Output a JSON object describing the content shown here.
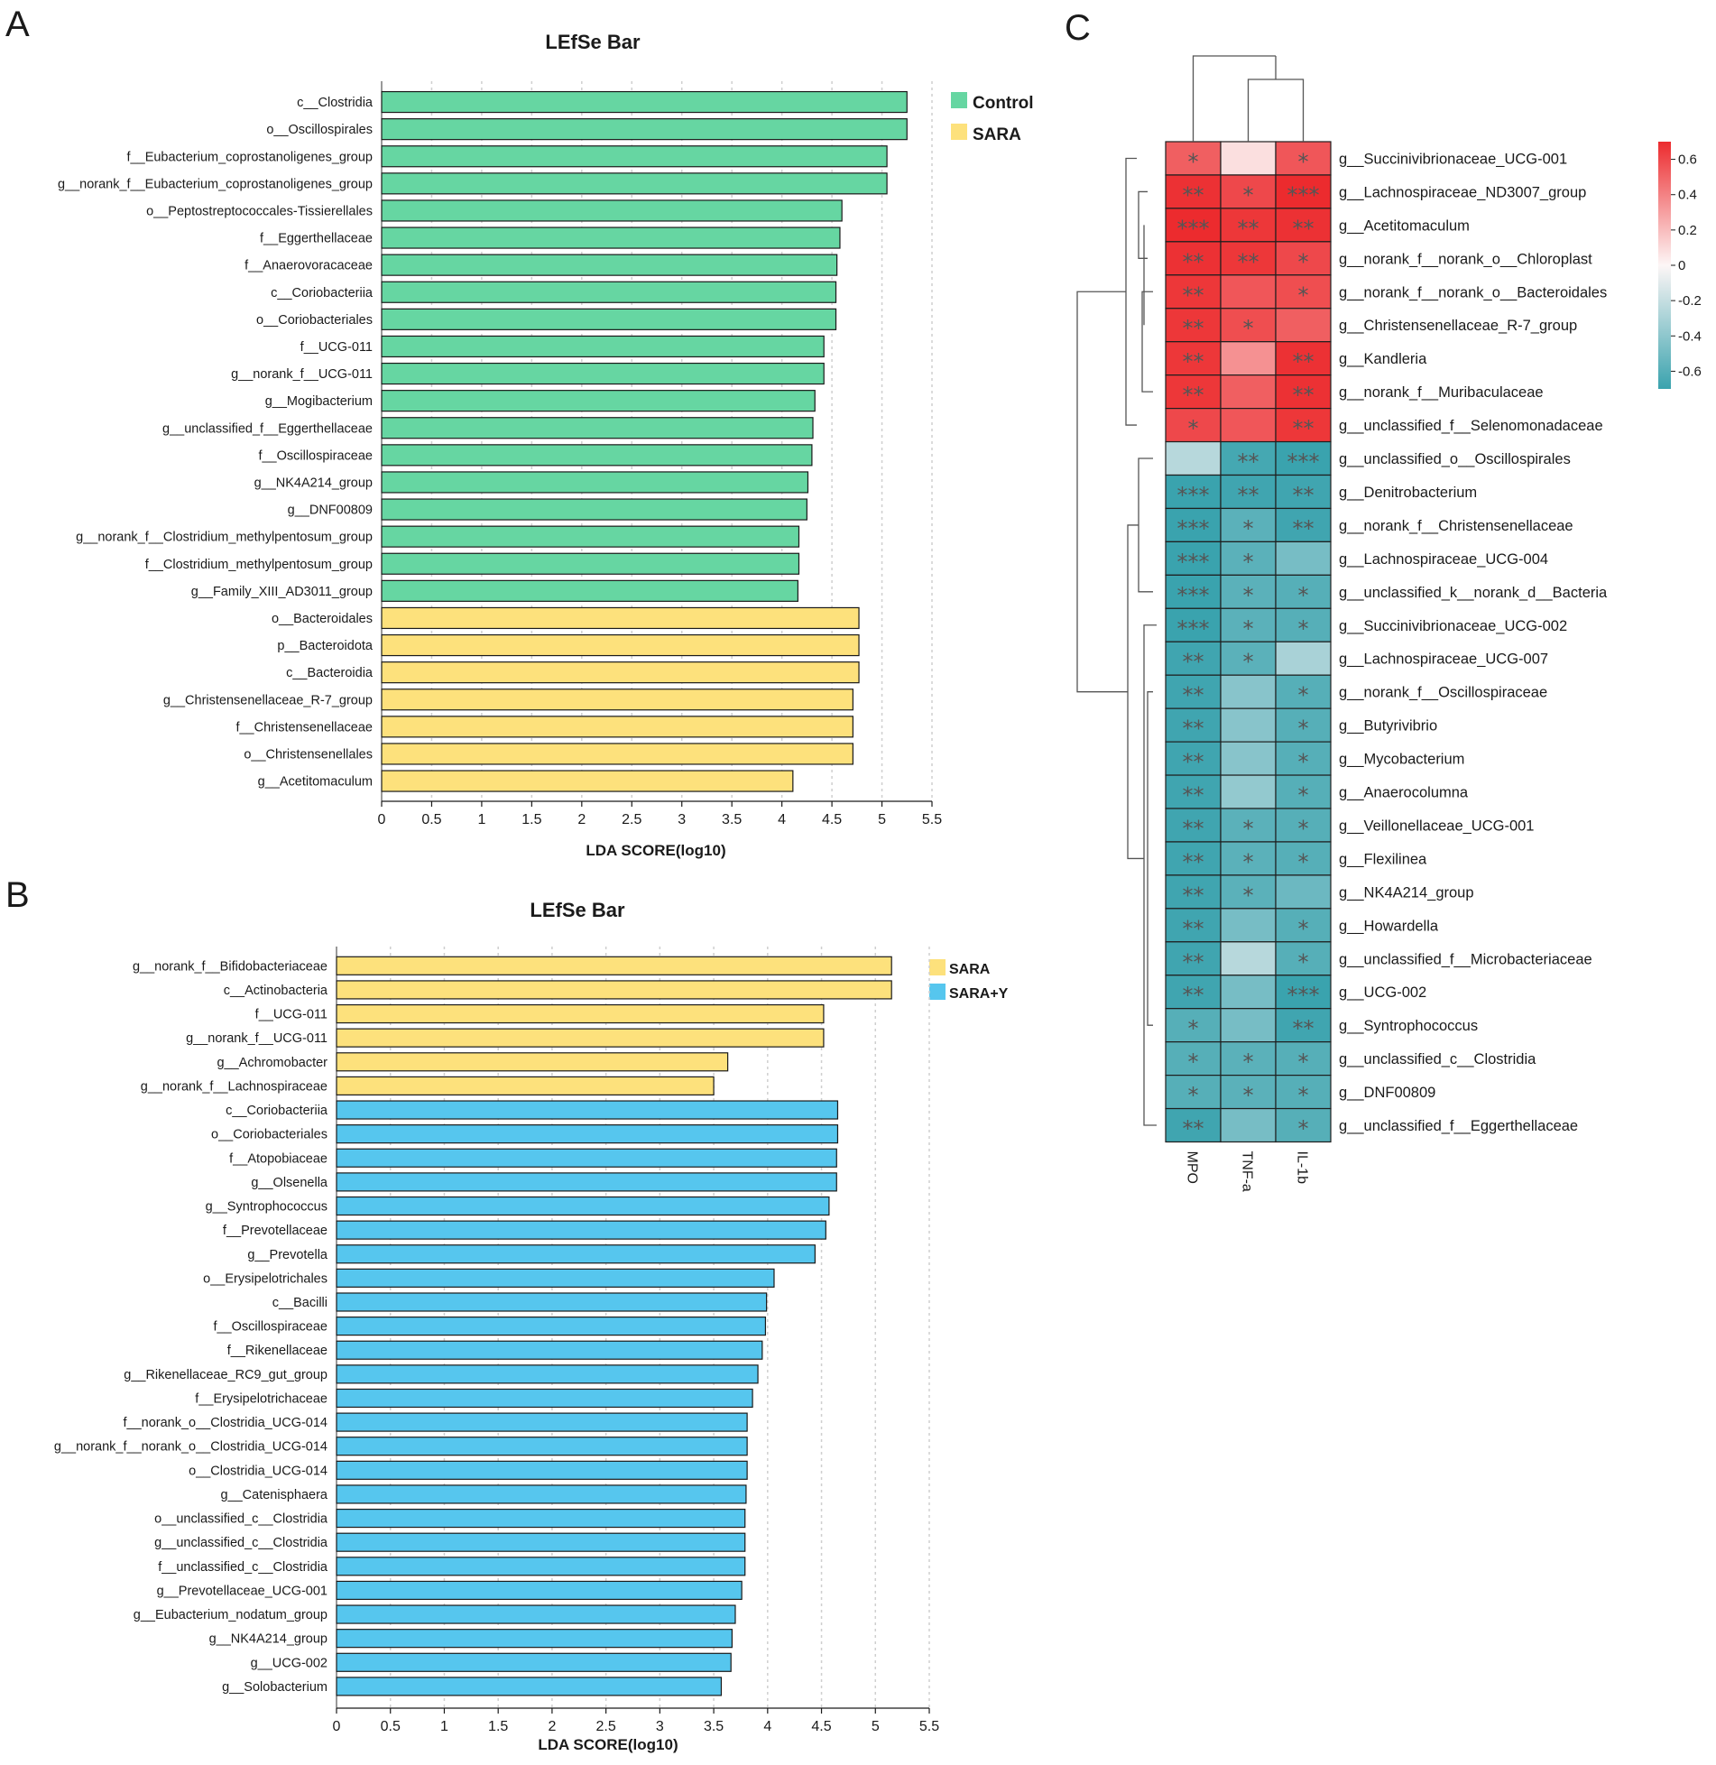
{
  "panels": {
    "a": "A",
    "b": "B",
    "c": "C"
  },
  "colors": {
    "control": "#66d6a2",
    "sara": "#fde17c",
    "saray": "#56c6ee",
    "neg": "#3aa3ae",
    "pos": "#ec2b2e"
  },
  "chart_data": [
    {
      "type": "bar",
      "orientation": "horizontal",
      "title": "LEfSe Bar",
      "xlabel": "LDA SCORE(log10)",
      "xlim": [
        0,
        5.5
      ],
      "xticks": [
        "0",
        "0.5",
        "1",
        "1.5",
        "2",
        "2.5",
        "3",
        "3.5",
        "4",
        "4.5",
        "5",
        "5.5"
      ],
      "legend": [
        {
          "name": "Control",
          "color": "#66d6a2"
        },
        {
          "name": "SARA",
          "color": "#fde17c"
        }
      ],
      "bars": [
        {
          "label": "c__Clostridia",
          "value": 5.25,
          "group": "Control"
        },
        {
          "label": "o__Oscillospirales",
          "value": 5.25,
          "group": "Control"
        },
        {
          "label": "f__Eubacterium_coprostanoligenes_group",
          "value": 5.05,
          "group": "Control"
        },
        {
          "label": "g__norank_f__Eubacterium_coprostanoligenes_group",
          "value": 5.05,
          "group": "Control"
        },
        {
          "label": "o__Peptostreptococcales-Tissierellales",
          "value": 4.6,
          "group": "Control"
        },
        {
          "label": "f__Eggerthellaceae",
          "value": 4.58,
          "group": "Control"
        },
        {
          "label": "f__Anaerovoracaceae",
          "value": 4.55,
          "group": "Control"
        },
        {
          "label": "c__Coriobacteriia",
          "value": 4.54,
          "group": "Control"
        },
        {
          "label": "o__Coriobacteriales",
          "value": 4.54,
          "group": "Control"
        },
        {
          "label": "f__UCG-011",
          "value": 4.42,
          "group": "Control"
        },
        {
          "label": "g__norank_f__UCG-011",
          "value": 4.42,
          "group": "Control"
        },
        {
          "label": "g__Mogibacterium",
          "value": 4.33,
          "group": "Control"
        },
        {
          "label": "g__unclassified_f__Eggerthellaceae",
          "value": 4.31,
          "group": "Control"
        },
        {
          "label": "f__Oscillospiraceae",
          "value": 4.3,
          "group": "Control"
        },
        {
          "label": "g__NK4A214_group",
          "value": 4.26,
          "group": "Control"
        },
        {
          "label": "g__DNF00809",
          "value": 4.25,
          "group": "Control"
        },
        {
          "label": "g__norank_f__Clostridium_methylpentosum_group",
          "value": 4.17,
          "group": "Control"
        },
        {
          "label": "f__Clostridium_methylpentosum_group",
          "value": 4.17,
          "group": "Control"
        },
        {
          "label": "g__Family_XIII_AD3011_group",
          "value": 4.16,
          "group": "Control"
        },
        {
          "label": "o__Bacteroidales",
          "value": 4.77,
          "group": "SARA"
        },
        {
          "label": "p__Bacteroidota",
          "value": 4.77,
          "group": "SARA"
        },
        {
          "label": "c__Bacteroidia",
          "value": 4.77,
          "group": "SARA"
        },
        {
          "label": "g__Christensenellaceae_R-7_group",
          "value": 4.71,
          "group": "SARA"
        },
        {
          "label": "f__Christensenellaceae",
          "value": 4.71,
          "group": "SARA"
        },
        {
          "label": "o__Christensenellales",
          "value": 4.71,
          "group": "SARA"
        },
        {
          "label": "g__Acetitomaculum",
          "value": 4.11,
          "group": "SARA"
        }
      ]
    },
    {
      "type": "bar",
      "orientation": "horizontal",
      "title": "LEfSe Bar",
      "xlabel": "LDA SCORE(log10)",
      "xlim": [
        0,
        5.5
      ],
      "xticks": [
        "0",
        "0.5",
        "1",
        "1.5",
        "2",
        "2.5",
        "3",
        "3.5",
        "4",
        "4.5",
        "5",
        "5.5"
      ],
      "legend": [
        {
          "name": "SARA",
          "color": "#fde17c"
        },
        {
          "name": "SARA+Y",
          "color": "#56c6ee"
        }
      ],
      "bars": [
        {
          "label": "g__norank_f__Bifidobacteriaceae",
          "value": 5.15,
          "group": "SARA"
        },
        {
          "label": "c__Actinobacteria",
          "value": 5.15,
          "group": "SARA"
        },
        {
          "label": "f__UCG-011",
          "value": 4.52,
          "group": "SARA"
        },
        {
          "label": "g__norank_f__UCG-011",
          "value": 4.52,
          "group": "SARA"
        },
        {
          "label": "g__Achromobacter",
          "value": 3.63,
          "group": "SARA"
        },
        {
          "label": "g__norank_f__Lachnospiraceae",
          "value": 3.5,
          "group": "SARA"
        },
        {
          "label": "c__Coriobacteriia",
          "value": 4.65,
          "group": "SARA+Y"
        },
        {
          "label": "o__Coriobacteriales",
          "value": 4.65,
          "group": "SARA+Y"
        },
        {
          "label": "f__Atopobiaceae",
          "value": 4.64,
          "group": "SARA+Y"
        },
        {
          "label": "g__Olsenella",
          "value": 4.64,
          "group": "SARA+Y"
        },
        {
          "label": "g__Syntrophococcus",
          "value": 4.57,
          "group": "SARA+Y"
        },
        {
          "label": "f__Prevotellaceae",
          "value": 4.54,
          "group": "SARA+Y"
        },
        {
          "label": "g__Prevotella",
          "value": 4.44,
          "group": "SARA+Y"
        },
        {
          "label": "o__Erysipelotrichales",
          "value": 4.06,
          "group": "SARA+Y"
        },
        {
          "label": "c__Bacilli",
          "value": 3.99,
          "group": "SARA+Y"
        },
        {
          "label": "f__Oscillospiraceae",
          "value": 3.98,
          "group": "SARA+Y"
        },
        {
          "label": "f__Rikenellaceae",
          "value": 3.95,
          "group": "SARA+Y"
        },
        {
          "label": "g__Rikenellaceae_RC9_gut_group",
          "value": 3.91,
          "group": "SARA+Y"
        },
        {
          "label": "f__Erysipelotrichaceae",
          "value": 3.86,
          "group": "SARA+Y"
        },
        {
          "label": "f__norank_o__Clostridia_UCG-014",
          "value": 3.81,
          "group": "SARA+Y"
        },
        {
          "label": "g__norank_f__norank_o__Clostridia_UCG-014",
          "value": 3.81,
          "group": "SARA+Y"
        },
        {
          "label": "o__Clostridia_UCG-014",
          "value": 3.81,
          "group": "SARA+Y"
        },
        {
          "label": "g__Catenisphaera",
          "value": 3.8,
          "group": "SARA+Y"
        },
        {
          "label": "o__unclassified_c__Clostridia",
          "value": 3.79,
          "group": "SARA+Y"
        },
        {
          "label": "g__unclassified_c__Clostridia",
          "value": 3.79,
          "group": "SARA+Y"
        },
        {
          "label": "f__unclassified_c__Clostridia",
          "value": 3.79,
          "group": "SARA+Y"
        },
        {
          "label": "g__Prevotellaceae_UCG-001",
          "value": 3.76,
          "group": "SARA+Y"
        },
        {
          "label": "g__Eubacterium_nodatum_group",
          "value": 3.7,
          "group": "SARA+Y"
        },
        {
          "label": "g__NK4A214_group",
          "value": 3.67,
          "group": "SARA+Y"
        },
        {
          "label": "g__UCG-002",
          "value": 3.66,
          "group": "SARA+Y"
        },
        {
          "label": "g__Solobacterium",
          "value": 3.57,
          "group": "SARA+Y"
        }
      ]
    },
    {
      "type": "heatmap",
      "columns": [
        "MPO",
        "TNF-a",
        "IL-1b"
      ],
      "colorbar_ticks": [
        "0.6",
        "0.4",
        "0.2",
        "0",
        "-0.2",
        "-0.4",
        "-0.6"
      ],
      "vrange": [
        -0.7,
        0.7
      ],
      "rows": [
        {
          "label": "g__Succinivibrionaceae_UCG-001",
          "values": [
            0.52,
            0.08,
            0.55
          ],
          "stars": [
            "*",
            "",
            "*"
          ]
        },
        {
          "label": "g__Lachnospiraceae_ND3007_group",
          "values": [
            0.68,
            0.6,
            0.72
          ],
          "stars": [
            "**",
            "*",
            "***"
          ]
        },
        {
          "label": "g__Acetitomaculum",
          "values": [
            0.72,
            0.66,
            0.68
          ],
          "stars": [
            "***",
            "**",
            "**"
          ]
        },
        {
          "label": "g__norank_f__norank_o__Chloroplast",
          "values": [
            0.68,
            0.66,
            0.6
          ],
          "stars": [
            "**",
            "**",
            "*"
          ]
        },
        {
          "label": "g__norank_f__norank_o__Bacteroidales",
          "values": [
            0.66,
            0.55,
            0.58
          ],
          "stars": [
            "**",
            "",
            "*"
          ]
        },
        {
          "label": "g__Christensenellaceae_R-7_group",
          "values": [
            0.66,
            0.58,
            0.52
          ],
          "stars": [
            "**",
            "*",
            ""
          ]
        },
        {
          "label": "g__Kandleria",
          "values": [
            0.66,
            0.35,
            0.68
          ],
          "stars": [
            "**",
            "",
            "**"
          ]
        },
        {
          "label": "g__norank_f__Muribaculaceae",
          "values": [
            0.66,
            0.52,
            0.68
          ],
          "stars": [
            "**",
            "",
            "**"
          ]
        },
        {
          "label": "g__unclassified_f__Selenomonadaceae",
          "values": [
            0.6,
            0.55,
            0.66
          ],
          "stars": [
            "*",
            "",
            "**"
          ]
        },
        {
          "label": "g__unclassified_o__Oscillospirales",
          "values": [
            -0.25,
            -0.66,
            -0.72
          ],
          "stars": [
            "",
            "**",
            "***"
          ]
        },
        {
          "label": "g__Denitrobacterium",
          "values": [
            -0.75,
            -0.68,
            -0.68
          ],
          "stars": [
            "***",
            "**",
            "**"
          ]
        },
        {
          "label": "g__norank_f__Christensenellaceae",
          "values": [
            -0.75,
            -0.58,
            -0.68
          ],
          "stars": [
            "***",
            "*",
            "**"
          ]
        },
        {
          "label": "g__Lachnospiraceae_UCG-004",
          "values": [
            -0.75,
            -0.58,
            -0.48
          ],
          "stars": [
            "***",
            "*",
            ""
          ]
        },
        {
          "label": "g__unclassified_k__norank_d__Bacteria",
          "values": [
            -0.75,
            -0.58,
            -0.6
          ],
          "stars": [
            "***",
            "*",
            "*"
          ]
        },
        {
          "label": "g__Succinivibrionaceae_UCG-002",
          "values": [
            -0.75,
            -0.58,
            -0.6
          ],
          "stars": [
            "***",
            "*",
            "*"
          ]
        },
        {
          "label": "g__Lachnospiraceae_UCG-007",
          "values": [
            -0.68,
            -0.58,
            -0.3
          ],
          "stars": [
            "**",
            "*",
            ""
          ]
        },
        {
          "label": "g__norank_f__Oscillospiraceae",
          "values": [
            -0.68,
            -0.42,
            -0.6
          ],
          "stars": [
            "**",
            "",
            "*"
          ]
        },
        {
          "label": "g__Butyrivibrio",
          "values": [
            -0.68,
            -0.42,
            -0.6
          ],
          "stars": [
            "**",
            "",
            "*"
          ]
        },
        {
          "label": "g__Mycobacterium",
          "values": [
            -0.68,
            -0.42,
            -0.6
          ],
          "stars": [
            "**",
            "",
            "*"
          ]
        },
        {
          "label": "g__Anaerocolumna",
          "values": [
            -0.68,
            -0.38,
            -0.6
          ],
          "stars": [
            "**",
            "",
            "*"
          ]
        },
        {
          "label": "g__Veillonellaceae_UCG-001",
          "values": [
            -0.68,
            -0.58,
            -0.6
          ],
          "stars": [
            "**",
            "*",
            "*"
          ]
        },
        {
          "label": "g__Flexilinea",
          "values": [
            -0.68,
            -0.58,
            -0.6
          ],
          "stars": [
            "**",
            "*",
            "*"
          ]
        },
        {
          "label": "g__NK4A214_group",
          "values": [
            -0.68,
            -0.58,
            -0.52
          ],
          "stars": [
            "**",
            "*",
            ""
          ]
        },
        {
          "label": "g__Howardella",
          "values": [
            -0.68,
            -0.48,
            -0.6
          ],
          "stars": [
            "**",
            "",
            "*"
          ]
        },
        {
          "label": "g__unclassified_f__Microbacteriaceae",
          "values": [
            -0.68,
            -0.25,
            -0.6
          ],
          "stars": [
            "**",
            "",
            "*"
          ]
        },
        {
          "label": "g__UCG-002",
          "values": [
            -0.68,
            -0.48,
            -0.72
          ],
          "stars": [
            "**",
            "",
            "***"
          ]
        },
        {
          "label": "g__Syntrophococcus",
          "values": [
            -0.6,
            -0.48,
            -0.68
          ],
          "stars": [
            "*",
            "",
            "**"
          ]
        },
        {
          "label": "g__unclassified_c__Clostridia",
          "values": [
            -0.6,
            -0.58,
            -0.6
          ],
          "stars": [
            "*",
            "*",
            "*"
          ]
        },
        {
          "label": "g__DNF00809",
          "values": [
            -0.6,
            -0.58,
            -0.6
          ],
          "stars": [
            "*",
            "*",
            "*"
          ]
        },
        {
          "label": "g__unclassified_f__Eggerthellaceae",
          "values": [
            -0.68,
            -0.48,
            -0.6
          ],
          "stars": [
            "**",
            "",
            "*"
          ]
        }
      ]
    }
  ]
}
